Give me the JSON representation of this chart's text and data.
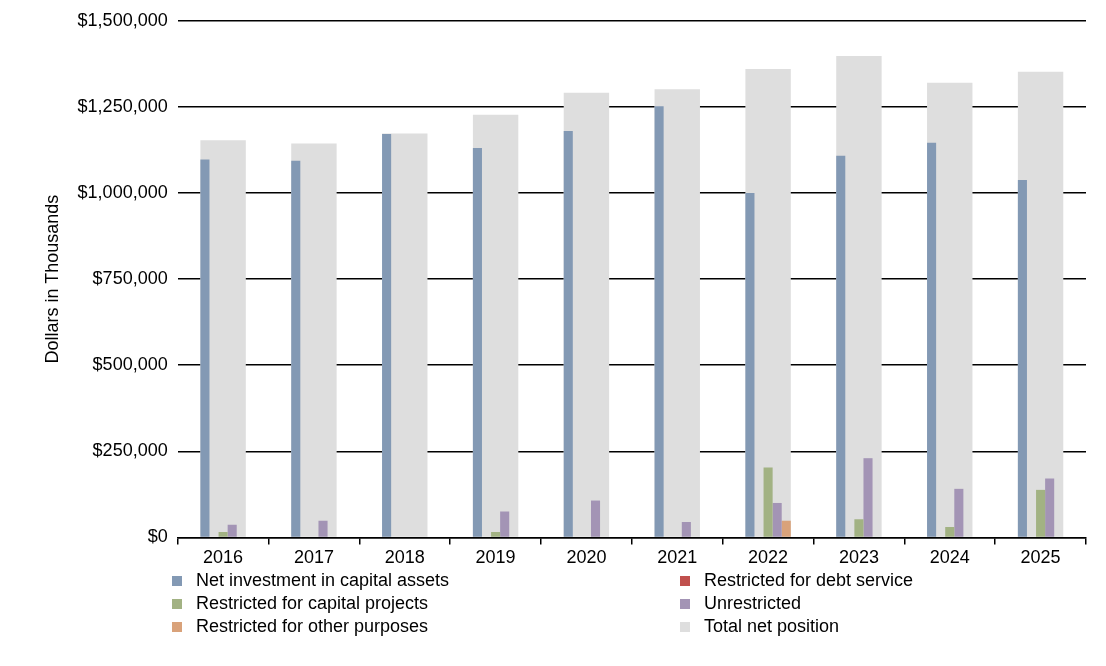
{
  "chart_data": {
    "type": "bar",
    "ylabel": "Dollars in Thousands",
    "categories": [
      "2016",
      "2017",
      "2018",
      "2019",
      "2020",
      "2021",
      "2022",
      "2023",
      "2024",
      "2025"
    ],
    "series": [
      {
        "name": "Net investment in capital assets",
        "color": "#8399b4",
        "values": [
          1097000,
          1094000,
          1171000,
          1131000,
          1180000,
          1252000,
          1000000,
          1108000,
          1146000,
          1038000
        ]
      },
      {
        "name": "Restricted for debt service",
        "color": "#c0504d",
        "values": [
          null,
          null,
          null,
          null,
          null,
          null,
          2000,
          null,
          null,
          null
        ]
      },
      {
        "name": "Restricted for capital projects",
        "color": "#a2b283",
        "values": [
          16000,
          null,
          null,
          16000,
          null,
          null,
          203000,
          53000,
          30000,
          138000
        ]
      },
      {
        "name": "Unrestricted",
        "color": "#a394b5",
        "values": [
          37000,
          48000,
          null,
          75000,
          107000,
          45000,
          100000,
          230000,
          141000,
          171000
        ]
      },
      {
        "name": "Restricted for other purposes",
        "color": "#d9a27a",
        "values": [
          null,
          null,
          null,
          null,
          null,
          null,
          48000,
          null,
          null,
          null
        ]
      },
      {
        "name": "Total net position",
        "color": "#dedede",
        "values": [
          1153000,
          1144000,
          1173000,
          1227000,
          1291000,
          1301000,
          1360000,
          1398000,
          1320000,
          1352000
        ]
      }
    ],
    "ylim": [
      0,
      1500000
    ],
    "yticks": [
      {
        "value": 0,
        "label": "$0"
      },
      {
        "value": 250000,
        "label": "$250,000"
      },
      {
        "value": 500000,
        "label": "$500,000"
      },
      {
        "value": 750000,
        "label": "$750,000"
      },
      {
        "value": 1000000,
        "label": "$1,000,000"
      },
      {
        "value": 1250000,
        "label": "$1,250,000"
      },
      {
        "value": 1500000,
        "label": "$1,500,000"
      }
    ],
    "grid": "y",
    "legend": "bottom"
  }
}
